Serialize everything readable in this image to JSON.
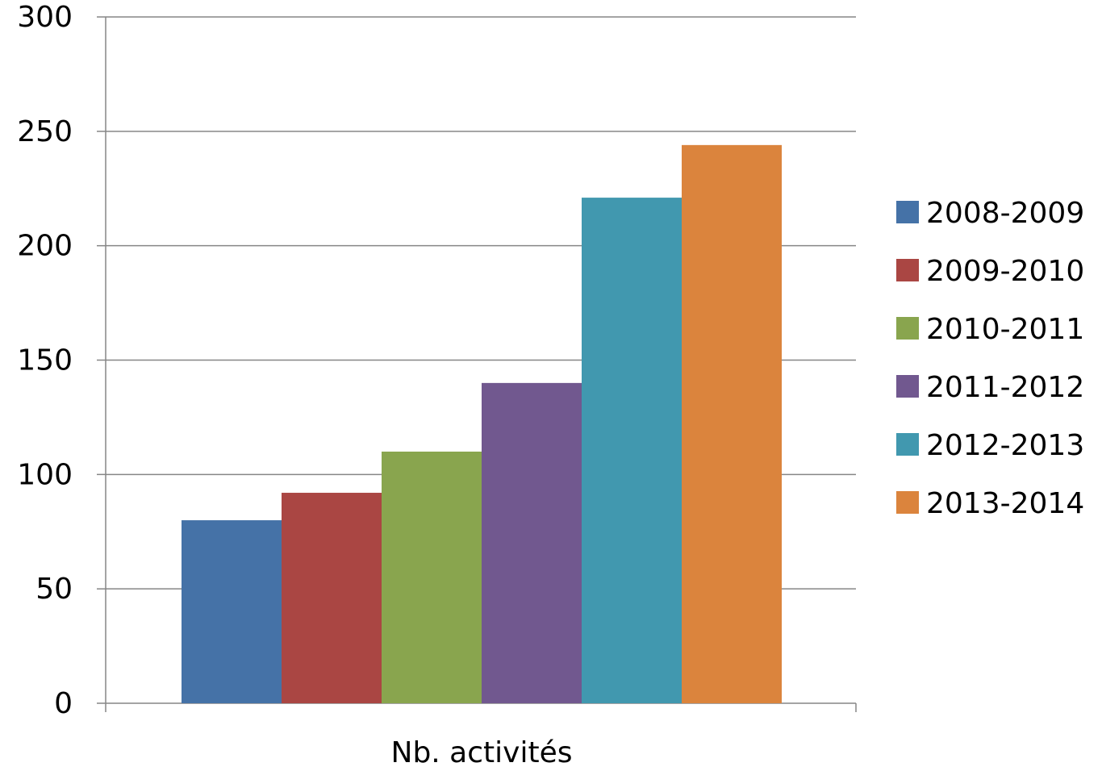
{
  "chart_data": {
    "type": "bar",
    "title": "",
    "xlabel": "",
    "ylabel": "",
    "categories": [
      "Nb. activités"
    ],
    "series": [
      {
        "name": "2008-2009",
        "values": [
          80
        ],
        "color": "#4572A7"
      },
      {
        "name": "2009-2010",
        "values": [
          92
        ],
        "color": "#AA4643"
      },
      {
        "name": "2010-2011",
        "values": [
          110
        ],
        "color": "#89A54E"
      },
      {
        "name": "2011-2012",
        "values": [
          140
        ],
        "color": "#71588F"
      },
      {
        "name": "2012-2013",
        "values": [
          221
        ],
        "color": "#4198AF"
      },
      {
        "name": "2013-2014",
        "values": [
          244
        ],
        "color": "#DB843D"
      }
    ],
    "ylim": [
      0,
      300
    ],
    "yticks": [
      "0",
      "50",
      "100",
      "150",
      "200",
      "250",
      "300"
    ],
    "grid": true,
    "legend": "right"
  }
}
